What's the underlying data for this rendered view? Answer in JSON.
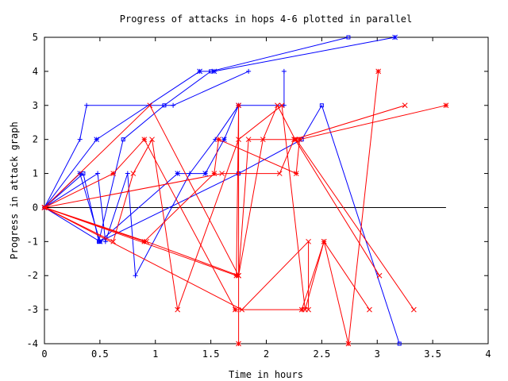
{
  "chart_data": {
    "type": "line",
    "title": "Progress of attacks in hops 4-6 plotted in parallel",
    "xlabel": "Time in hours",
    "ylabel": "Progress in attack graph",
    "xlim": [
      0,
      4
    ],
    "ylim": [
      -4,
      5
    ],
    "xticks": [
      "0",
      "0.5",
      "1",
      "1.5",
      "2",
      "2.5",
      "3",
      "3.5",
      "4"
    ],
    "yticks": [
      "-4",
      "-3",
      "-2",
      "-1",
      "0",
      "1",
      "2",
      "3",
      "4",
      "5"
    ],
    "baseline": {
      "x": [
        0,
        3.62
      ],
      "y": 0,
      "color": "#000000"
    },
    "colors": {
      "blue": "#0000ff",
      "red": "#ff0000"
    },
    "series": [
      {
        "color": "#0000ff",
        "marker": "plus",
        "points": [
          [
            0,
            0
          ],
          [
            0.32,
            2
          ],
          [
            0.38,
            3
          ],
          [
            1.16,
            3
          ],
          [
            1.84,
            4
          ]
        ]
      },
      {
        "color": "#0000ff",
        "marker": "plus",
        "points": [
          [
            0,
            0
          ],
          [
            0.48,
            1
          ],
          [
            0.55,
            -1
          ],
          [
            0.75,
            1
          ],
          [
            0.82,
            -2
          ],
          [
            1.31,
            1
          ],
          [
            1.54,
            2
          ],
          [
            1.75,
            3
          ],
          [
            2.16,
            3
          ],
          [
            2.16,
            4
          ]
        ]
      },
      {
        "color": "#0000ff",
        "marker": "star",
        "points": [
          [
            0,
            0
          ],
          [
            0.47,
            2
          ],
          [
            1.4,
            4
          ],
          [
            1.53,
            4
          ],
          [
            3.16,
            5
          ]
        ]
      },
      {
        "color": "#0000ff",
        "marker": "square",
        "points": [
          [
            0,
            0
          ],
          [
            0.35,
            1
          ],
          [
            0.49,
            -1
          ],
          [
            0.71,
            2
          ],
          [
            1.08,
            3
          ],
          [
            1.5,
            4
          ],
          [
            2.74,
            5
          ]
        ]
      },
      {
        "color": "#0000ff",
        "marker": "square",
        "points": [
          [
            0,
            0
          ],
          [
            0.5,
            -1
          ],
          [
            1.75,
            1
          ],
          [
            2.32,
            2
          ],
          [
            2.5,
            3
          ],
          [
            3.2,
            -4
          ]
        ]
      },
      {
        "color": "#0000ff",
        "marker": "star",
        "points": [
          [
            0,
            0
          ],
          [
            0.32,
            1
          ],
          [
            0.5,
            -1
          ],
          [
            1.2,
            1
          ],
          [
            1.45,
            1
          ],
          [
            1.62,
            2
          ],
          [
            1.75,
            3
          ]
        ]
      },
      {
        "color": "#ff0000",
        "marker": "cross",
        "points": [
          [
            0,
            0
          ],
          [
            0.62,
            -1
          ],
          [
            0.8,
            1
          ],
          [
            0.97,
            2
          ],
          [
            1.2,
            -3
          ],
          [
            1.75,
            2
          ],
          [
            2.14,
            3
          ],
          [
            2.35,
            -3
          ],
          [
            2.52,
            -1
          ],
          [
            2.93,
            -3
          ]
        ]
      },
      {
        "color": "#ff0000",
        "marker": "cross",
        "points": [
          [
            0,
            0
          ],
          [
            0.92,
            -1
          ],
          [
            1.75,
            -2
          ],
          [
            1.84,
            2
          ],
          [
            2.27,
            2
          ],
          [
            3.33,
            -3
          ]
        ]
      },
      {
        "color": "#ff0000",
        "marker": "star",
        "points": [
          [
            0,
            0
          ],
          [
            0.9,
            -1
          ],
          [
            1.53,
            1
          ],
          [
            1.57,
            2
          ],
          [
            2.27,
            1
          ],
          [
            2.3,
            2
          ],
          [
            3.62,
            3
          ]
        ]
      },
      {
        "color": "#ff0000",
        "marker": "star",
        "points": [
          [
            0,
            0
          ],
          [
            0.62,
            1
          ],
          [
            0.9,
            2
          ],
          [
            1.72,
            -3
          ],
          [
            2.32,
            -3
          ],
          [
            2.52,
            -1
          ],
          [
            2.74,
            -4
          ],
          [
            3.01,
            4
          ]
        ]
      },
      {
        "color": "#ff0000",
        "marker": "star",
        "points": [
          [
            0,
            0
          ],
          [
            1.73,
            -2
          ],
          [
            1.75,
            3
          ],
          [
            1.75,
            -4
          ]
        ]
      },
      {
        "color": "#ff0000",
        "marker": "cross",
        "points": [
          [
            0,
            0
          ],
          [
            0.95,
            3
          ],
          [
            1.75,
            -2
          ],
          [
            1.97,
            2
          ],
          [
            2.1,
            3
          ],
          [
            2.26,
            2
          ],
          [
            3.02,
            -2
          ]
        ]
      },
      {
        "color": "#ff0000",
        "marker": "cross",
        "points": [
          [
            0,
            0
          ],
          [
            1.6,
            1
          ],
          [
            2.12,
            1
          ],
          [
            2.25,
            2
          ],
          [
            3.25,
            3
          ]
        ]
      },
      {
        "color": "#ff0000",
        "marker": "cross",
        "points": [
          [
            0,
            0
          ],
          [
            1.78,
            -3
          ],
          [
            2.38,
            -1
          ],
          [
            2.38,
            -3
          ]
        ]
      }
    ]
  }
}
